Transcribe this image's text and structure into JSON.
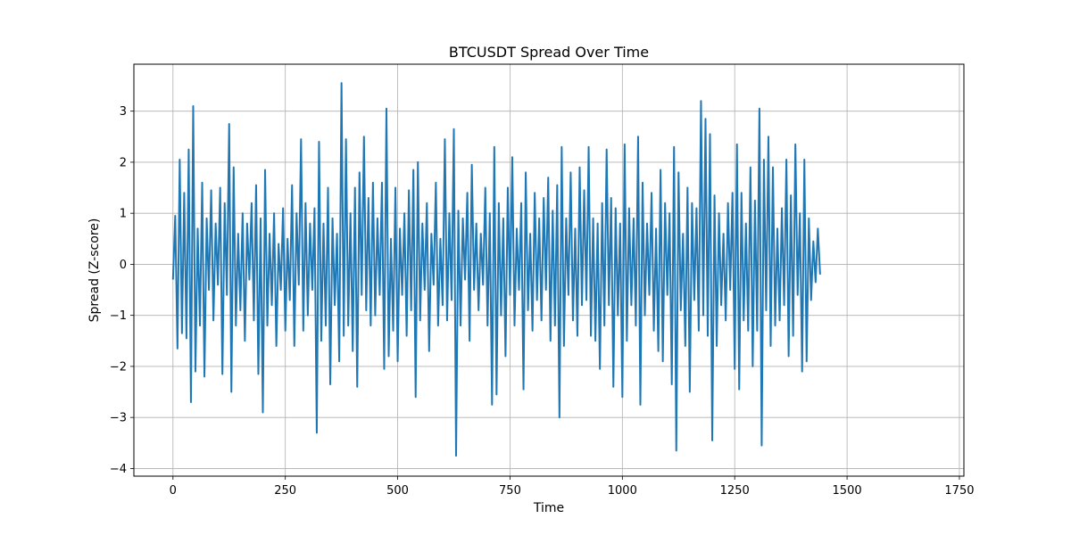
{
  "chart_data": {
    "type": "line",
    "title": "BTCUSDT Spread Over Time",
    "xlabel": "Time",
    "ylabel": "Spread (Z-score)",
    "xlim": [
      -87,
      1760
    ],
    "ylim": [
      -4.15,
      3.92
    ],
    "xticks": [
      0,
      250,
      500,
      750,
      1000,
      1250,
      1500,
      1750
    ],
    "xtick_labels": [
      "0",
      "250",
      "500",
      "750",
      "1000",
      "1250",
      "1500",
      "1750"
    ],
    "yticks": [
      -4,
      -3,
      -2,
      -1,
      0,
      1,
      2,
      3
    ],
    "ytick_labels": [
      "−4",
      "−3",
      "−2",
      "−1",
      "0",
      "1",
      "2",
      "3"
    ],
    "grid": true,
    "line_color": "#1f77b4",
    "series": [
      {
        "x_start": 0,
        "x_step": 5,
        "values": [
          -0.3,
          0.95,
          -1.65,
          2.05,
          -1.35,
          1.4,
          -1.45,
          2.25,
          -2.7,
          3.1,
          -2.1,
          0.7,
          -1.2,
          1.6,
          -2.2,
          0.9,
          -0.5,
          1.45,
          -1.1,
          0.8,
          -0.4,
          1.5,
          -2.15,
          1.2,
          -0.6,
          2.75,
          -2.5,
          1.9,
          -1.2,
          0.6,
          -0.9,
          1.0,
          -1.5,
          0.8,
          -0.3,
          1.2,
          -1.1,
          1.55,
          -2.15,
          0.9,
          -2.9,
          1.85,
          -1.2,
          0.6,
          -0.8,
          1.0,
          -1.6,
          0.4,
          -0.5,
          1.1,
          -1.3,
          0.5,
          -0.7,
          1.55,
          -1.6,
          1.0,
          -0.4,
          2.45,
          -1.3,
          1.2,
          -1.0,
          0.8,
          -0.5,
          1.1,
          -3.3,
          2.4,
          -1.5,
          0.8,
          -1.2,
          1.5,
          -2.35,
          0.9,
          -0.8,
          0.6,
          -1.9,
          3.55,
          -1.4,
          2.45,
          -1.2,
          1.0,
          -1.7,
          1.5,
          -2.4,
          1.8,
          -0.6,
          2.5,
          -0.9,
          1.3,
          -1.2,
          1.6,
          -1.0,
          0.9,
          -0.6,
          1.6,
          -2.05,
          3.05,
          -1.8,
          0.5,
          -1.3,
          1.5,
          -1.9,
          0.7,
          -0.6,
          1.0,
          -1.4,
          1.45,
          -0.9,
          1.85,
          -2.6,
          2.0,
          -1.1,
          0.8,
          -0.5,
          1.2,
          -1.7,
          0.6,
          -0.4,
          1.6,
          -1.2,
          0.5,
          -0.8,
          2.45,
          -1.1,
          1.0,
          -0.7,
          2.65,
          -3.75,
          1.05,
          -1.2,
          0.9,
          -0.3,
          1.4,
          -1.5,
          1.95,
          -0.5,
          0.8,
          -0.9,
          0.6,
          -0.4,
          1.5,
          -1.2,
          1.0,
          -2.75,
          2.3,
          -2.55,
          1.2,
          -1.0,
          0.9,
          -1.8,
          1.5,
          -0.6,
          2.1,
          -1.2,
          0.7,
          -0.5,
          1.2,
          -2.45,
          1.8,
          -0.9,
          0.6,
          -1.3,
          1.4,
          -0.7,
          0.9,
          -1.1,
          1.3,
          -0.5,
          1.7,
          -1.5,
          1.05,
          -1.2,
          1.55,
          -3.0,
          2.3,
          -1.6,
          0.9,
          -0.6,
          1.8,
          -1.1,
          0.7,
          -1.4,
          1.9,
          -0.8,
          1.45,
          -0.7,
          2.3,
          -1.4,
          0.9,
          -1.5,
          0.8,
          -2.05,
          1.2,
          -1.2,
          2.25,
          -0.8,
          1.3,
          -2.4,
          1.1,
          -1.0,
          0.8,
          -2.6,
          2.35,
          -1.5,
          1.1,
          -0.8,
          0.9,
          -1.2,
          2.5,
          -2.75,
          1.6,
          -1.0,
          0.8,
          -0.6,
          1.4,
          -1.3,
          0.7,
          -1.7,
          1.85,
          -1.9,
          1.2,
          -0.6,
          1.0,
          -2.35,
          2.3,
          -3.65,
          1.8,
          -0.9,
          0.6,
          -1.6,
          1.5,
          -2.5,
          1.2,
          -0.7,
          1.1,
          -1.3,
          3.2,
          -1.0,
          2.85,
          -1.4,
          2.55,
          -3.45,
          1.35,
          -1.6,
          1.0,
          -0.8,
          0.6,
          -1.1,
          1.2,
          -0.5,
          1.4,
          -2.05,
          2.35,
          -2.45,
          1.4,
          -1.1,
          0.8,
          -1.3,
          1.9,
          -2.0,
          1.25,
          -1.3,
          3.05,
          -3.55,
          2.05,
          -0.9,
          2.5,
          -1.6,
          1.9,
          -1.2,
          0.7,
          -1.1,
          1.1,
          -0.8,
          2.05,
          -1.8,
          1.35,
          -1.4,
          2.35,
          -0.6,
          1.0,
          -2.1,
          2.05,
          -1.9,
          0.9,
          -0.7,
          0.45,
          -0.35,
          0.7,
          -0.2
        ]
      }
    ]
  }
}
